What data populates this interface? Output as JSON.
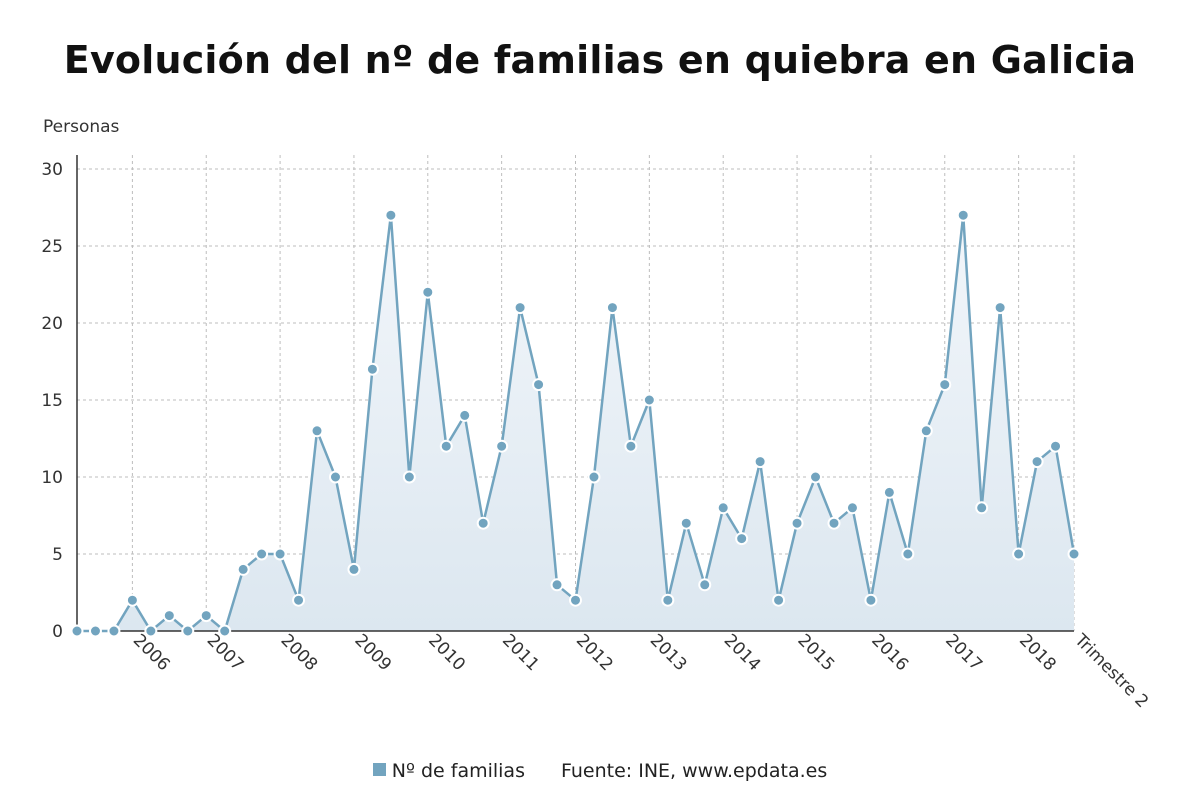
{
  "title": "Evolución del nº de familias en quiebra en Galicia",
  "colors": {
    "line": "#72a4bf",
    "area_top": "#dfe9f2",
    "grid": "#bdbdbd",
    "axis": "#333333"
  },
  "legend": {
    "series_label": "Nº de familias",
    "source": "Fuente: INE, www.epdata.es"
  },
  "chart_data": {
    "type": "area",
    "ylabel": "Personas",
    "xlabel": "",
    "ylim": [
      0,
      30
    ],
    "yticks": [
      0,
      5,
      10,
      15,
      20,
      25,
      30
    ],
    "grid": true,
    "legend_position": "bottom",
    "x_tick_labels": [
      {
        "label": "2006",
        "index": 3
      },
      {
        "label": "2007",
        "index": 7
      },
      {
        "label": "2008",
        "index": 11
      },
      {
        "label": "2009",
        "index": 15
      },
      {
        "label": "2010",
        "index": 19
      },
      {
        "label": "2011",
        "index": 23
      },
      {
        "label": "2012",
        "index": 27
      },
      {
        "label": "2013",
        "index": 31
      },
      {
        "label": "2014",
        "index": 35
      },
      {
        "label": "2015",
        "index": 39
      },
      {
        "label": "2016",
        "index": 43
      },
      {
        "label": "2017",
        "index": 47
      },
      {
        "label": "2018",
        "index": 51
      },
      {
        "label": "Trimestre 2",
        "index": 54
      }
    ],
    "series": [
      {
        "name": "Nº de familias",
        "values": [
          0,
          0,
          0,
          2,
          0,
          1,
          0,
          1,
          0,
          4,
          5,
          5,
          2,
          13,
          10,
          4,
          17,
          27,
          10,
          22,
          12,
          14,
          7,
          12,
          21,
          16,
          3,
          2,
          10,
          21,
          12,
          15,
          2,
          7,
          3,
          8,
          6,
          11,
          2,
          7,
          10,
          7,
          8,
          2,
          9,
          5,
          13,
          16,
          27,
          8,
          21,
          5,
          11,
          12,
          5
        ]
      }
    ]
  }
}
